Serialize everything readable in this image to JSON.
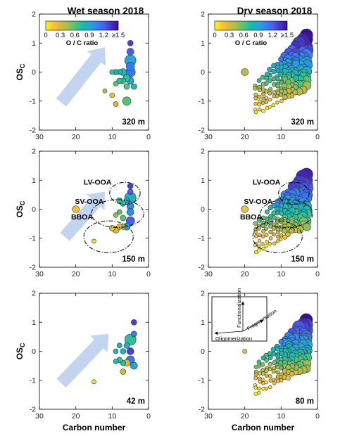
{
  "chart_data": [
    {
      "type": "scatter",
      "panel": "wet-320",
      "title": "Wet season 2018",
      "altitude": "320 m",
      "ylabel": "OS",
      "ylabel_sub": "C",
      "xlabel": "",
      "xlim": [
        30,
        0
      ],
      "ylim": [
        -2,
        2
      ],
      "xticks": [
        30,
        20,
        10,
        0
      ],
      "yticks": [
        2,
        1,
        0,
        -1,
        -2
      ],
      "colorbar": true,
      "arrow": "arrow-a",
      "points": [
        {
          "x": 5,
          "y": 1.0,
          "oc": 1.3,
          "s": 4
        },
        {
          "x": 5,
          "y": 0.7,
          "oc": 1.2,
          "s": 5
        },
        {
          "x": 5,
          "y": 0.4,
          "oc": 0.9,
          "s": 8
        },
        {
          "x": 5,
          "y": 0.2,
          "oc": 1.1,
          "s": 6
        },
        {
          "x": 5,
          "y": 0.0,
          "oc": 1.1,
          "s": 7
        },
        {
          "x": 5,
          "y": -0.3,
          "oc": 0.9,
          "s": 5
        },
        {
          "x": 6,
          "y": -0.2,
          "oc": 0.7,
          "s": 5
        },
        {
          "x": 7,
          "y": 0.0,
          "oc": 0.8,
          "s": 5
        },
        {
          "x": 7,
          "y": -0.3,
          "oc": 0.7,
          "s": 4
        },
        {
          "x": 8,
          "y": 0.0,
          "oc": 0.8,
          "s": 4
        },
        {
          "x": 8,
          "y": -0.3,
          "oc": 0.7,
          "s": 4
        },
        {
          "x": 9,
          "y": 0.0,
          "oc": 0.8,
          "s": 4
        },
        {
          "x": 9,
          "y": -0.4,
          "oc": 0.6,
          "s": 3.5
        },
        {
          "x": 6,
          "y": -0.5,
          "oc": 0.6,
          "s": 4
        },
        {
          "x": 6,
          "y": -1.0,
          "oc": 0.6,
          "s": 6
        },
        {
          "x": 10,
          "y": 0.0,
          "oc": 0.7,
          "s": 3.5
        },
        {
          "x": 10,
          "y": -0.8,
          "oc": 0.2,
          "s": 3.5
        },
        {
          "x": 9,
          "y": -1.1,
          "oc": 0.3,
          "s": 3.5
        },
        {
          "x": 12,
          "y": -0.65,
          "oc": 0.4,
          "s": 3
        },
        {
          "x": 4,
          "y": -0.5,
          "oc": 0.8,
          "s": 4
        }
      ]
    },
    {
      "type": "scatter",
      "panel": "dry-320",
      "title": "Dry season 2018",
      "altitude": "320 m",
      "ylabel": "",
      "xlabel": "",
      "xlim": [
        30,
        0
      ],
      "ylim": [
        -2,
        2
      ],
      "xticks": [
        30,
        20,
        10,
        0
      ],
      "yticks": [
        2,
        1,
        0,
        -1,
        -2
      ],
      "colorbar": true,
      "cluster": "dense-high",
      "extra_points": [
        {
          "x": 20,
          "y": 0.0,
          "oc": 0.4,
          "s": 5
        }
      ]
    },
    {
      "type": "scatter",
      "panel": "wet-150",
      "altitude": "150 m",
      "ylabel": "OS",
      "ylabel_sub": "C",
      "xlabel": "",
      "xlim": [
        30,
        0
      ],
      "ylim": [
        -2,
        2
      ],
      "xticks": [
        30,
        20,
        10,
        0
      ],
      "yticks": [
        2,
        1,
        0,
        -1,
        -2
      ],
      "ellipses": true,
      "labels": [
        "LV-OOA",
        "SV-OOA",
        "BBOA"
      ],
      "arrow": "arrow-b",
      "points": [
        {
          "x": 5,
          "y": 0.8,
          "oc": 1.3,
          "s": 4
        },
        {
          "x": 5,
          "y": 0.6,
          "oc": 1.2,
          "s": 4
        },
        {
          "x": 5,
          "y": 0.4,
          "oc": 0.8,
          "s": 8
        },
        {
          "x": 5,
          "y": 0.1,
          "oc": 1.0,
          "s": 5
        },
        {
          "x": 5,
          "y": -0.1,
          "oc": 1.0,
          "s": 5
        },
        {
          "x": 5,
          "y": -0.4,
          "oc": 1.2,
          "s": 6
        },
        {
          "x": 6,
          "y": 0.3,
          "oc": 0.9,
          "s": 4
        },
        {
          "x": 6,
          "y": -0.6,
          "oc": 0.9,
          "s": 5
        },
        {
          "x": 7,
          "y": 0.2,
          "oc": 0.7,
          "s": 4
        },
        {
          "x": 7,
          "y": -0.3,
          "oc": 0.6,
          "s": 4
        },
        {
          "x": 7,
          "y": -0.6,
          "oc": 0.4,
          "s": 4
        },
        {
          "x": 8,
          "y": 0.3,
          "oc": 0.7,
          "s": 4
        },
        {
          "x": 8,
          "y": -0.1,
          "oc": 0.6,
          "s": 3.5
        },
        {
          "x": 8,
          "y": -0.6,
          "oc": 0.3,
          "s": 4
        },
        {
          "x": 9,
          "y": -0.2,
          "oc": 0.5,
          "s": 3.5
        },
        {
          "x": 9,
          "y": -0.7,
          "oc": 0.3,
          "s": 5
        },
        {
          "x": 10,
          "y": -0.65,
          "oc": 0.2,
          "s": 4
        },
        {
          "x": 20,
          "y": 0.0,
          "oc": 0.2,
          "s": 5
        },
        {
          "x": 15,
          "y": -1.1,
          "oc": 0.1,
          "s": 3
        }
      ]
    },
    {
      "type": "scatter",
      "panel": "dry-150",
      "altitude": "150 m",
      "ylabel": "",
      "xlabel": "",
      "xlim": [
        30,
        0
      ],
      "ylim": [
        -2,
        2
      ],
      "xticks": [
        30,
        20,
        10,
        0
      ],
      "yticks": [
        2,
        1,
        0,
        -1,
        -2
      ],
      "ellipses": true,
      "labels": [
        "LV-OOA",
        "SV-OOA",
        "BBOA"
      ],
      "cluster": "dense-mid",
      "extra_points": [
        {
          "x": 20,
          "y": 0.0,
          "oc": 0.2,
          "s": 5
        }
      ]
    },
    {
      "type": "scatter",
      "panel": "wet-42",
      "altitude": "42 m",
      "ylabel": "OS",
      "ylabel_sub": "C",
      "xlabel": "Carbon number",
      "xlim": [
        30,
        0
      ],
      "ylim": [
        -2,
        2
      ],
      "xticks": [
        30,
        20,
        10,
        0
      ],
      "yticks": [
        2,
        1,
        0,
        -1,
        -2
      ],
      "arrow": "arrow-c",
      "points": [
        {
          "x": 4,
          "y": 1.0,
          "oc": 1.3,
          "s": 4
        },
        {
          "x": 4,
          "y": 0.6,
          "oc": 1.1,
          "s": 4
        },
        {
          "x": 5,
          "y": 0.4,
          "oc": 0.7,
          "s": 8
        },
        {
          "x": 5,
          "y": 0.0,
          "oc": 1.3,
          "s": 5
        },
        {
          "x": 5,
          "y": -0.3,
          "oc": 1.1,
          "s": 6
        },
        {
          "x": 4,
          "y": -0.5,
          "oc": 0.9,
          "s": 5
        },
        {
          "x": 6,
          "y": 0.2,
          "oc": 0.8,
          "s": 4
        },
        {
          "x": 6,
          "y": -0.4,
          "oc": 0.3,
          "s": 5
        },
        {
          "x": 7,
          "y": 0.0,
          "oc": 0.9,
          "s": 4
        },
        {
          "x": 7,
          "y": -0.4,
          "oc": 0.7,
          "s": 4
        },
        {
          "x": 8,
          "y": 0.2,
          "oc": 0.8,
          "s": 3.5
        },
        {
          "x": 8,
          "y": -0.3,
          "oc": 0.7,
          "s": 4
        },
        {
          "x": 9,
          "y": 0.0,
          "oc": 0.8,
          "s": 3.5
        },
        {
          "x": 9,
          "y": -0.35,
          "oc": 0.7,
          "s": 3.5
        },
        {
          "x": 7,
          "y": -0.7,
          "oc": 0.3,
          "s": 4
        },
        {
          "x": 15,
          "y": -1.05,
          "oc": 0.1,
          "s": 3
        }
      ]
    },
    {
      "type": "scatter",
      "panel": "dry-80",
      "altitude": "80 m",
      "ylabel": "",
      "xlabel": "Carbon number",
      "xlim": [
        30,
        0
      ],
      "ylim": [
        -2,
        2
      ],
      "xticks": [
        30,
        20,
        10,
        0
      ],
      "yticks": [
        2,
        1,
        0,
        -1,
        -2
      ],
      "cluster": "dense-low",
      "extra_points": [
        {
          "x": 20,
          "y": 0.0,
          "oc": 0.2,
          "s": 3
        }
      ],
      "inset": {
        "up": "Functionalization",
        "right": "Fragmentation",
        "left": "Oligomerization"
      }
    }
  ],
  "colorbar": {
    "label": "O / C ratio",
    "ticks": [
      "0",
      "0.3",
      "0.6",
      "0.9",
      "1.2",
      "≥1.5"
    ],
    "range": [
      0,
      1.5
    ],
    "colors": [
      "#f9fb0e",
      "#fbc33b",
      "#d8ba37",
      "#a4be53",
      "#55c573",
      "#17bcaa",
      "#25a6d4",
      "#2e87f7",
      "#4a5cf4",
      "#4535c4",
      "#3d0b99"
    ]
  },
  "marker_edge": "#333333",
  "arrow_color": "#b8ccee",
  "ellipse_color": "#000000"
}
